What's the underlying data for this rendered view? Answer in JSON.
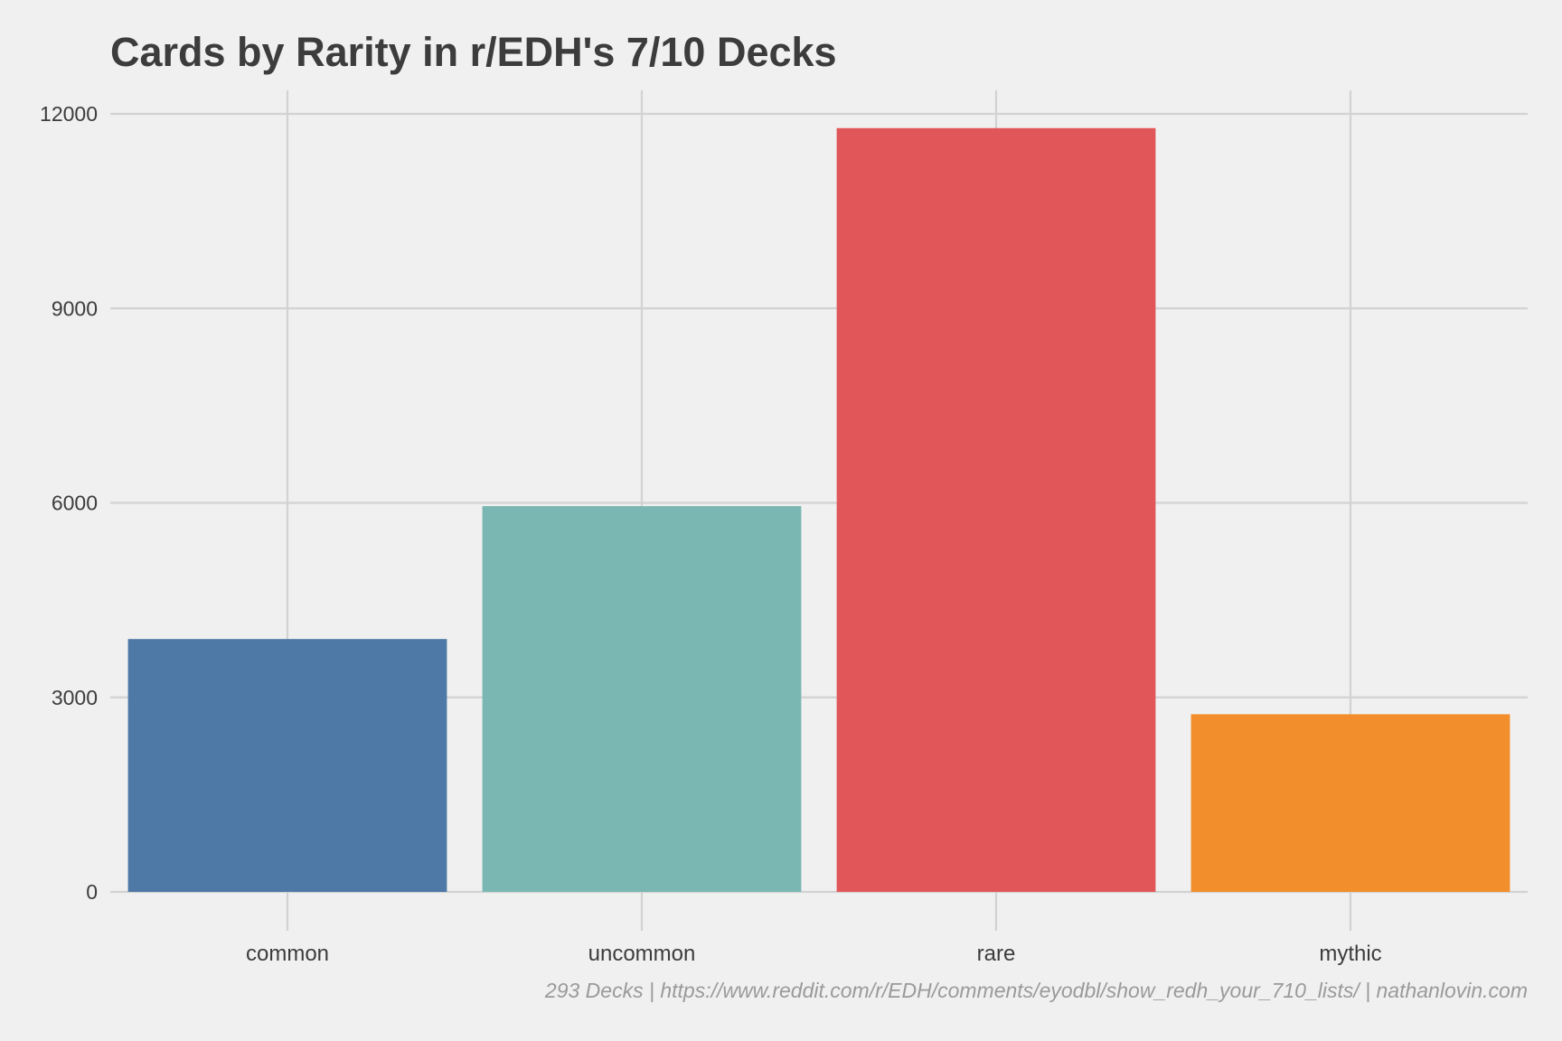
{
  "chart_data": {
    "type": "bar",
    "title": "Cards by Rarity in r/EDH's 7/10 Decks",
    "xlabel": "",
    "ylabel": "",
    "categories": [
      "common",
      "uncommon",
      "rare",
      "mythic"
    ],
    "values": [
      3900,
      5950,
      11780,
      2740
    ],
    "colors": [
      "#4e79a7",
      "#7ab7b2",
      "#e15759",
      "#f28e2b"
    ],
    "ylim": [
      0,
      12000
    ],
    "yticks": [
      0,
      3000,
      6000,
      9000,
      12000
    ],
    "ytick_labels": [
      "0",
      "3000",
      "6000",
      "9000",
      "12000"
    ],
    "grid": true,
    "legend": "none",
    "caption": "293 Decks | https://www.reddit.com/r/EDH/comments/eyodbl/show_redh_your_710_lists/ | nathanlovin.com"
  }
}
